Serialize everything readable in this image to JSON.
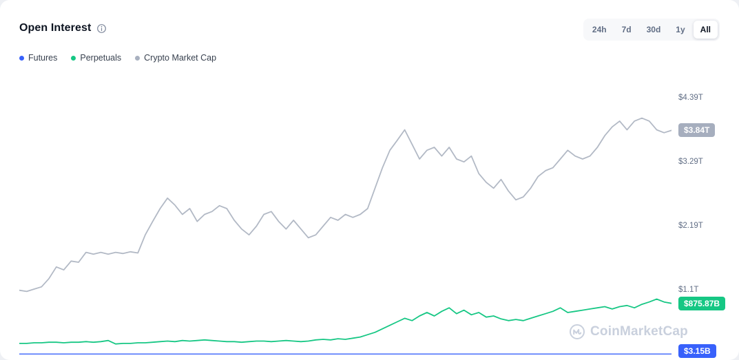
{
  "header": {
    "title": "Open Interest",
    "ranges": [
      "24h",
      "7d",
      "30d",
      "1y",
      "All"
    ],
    "active_range": "All"
  },
  "legend": [
    {
      "label": "Futures",
      "color": "#3861fb"
    },
    {
      "label": "Perpetuals",
      "color": "#16c784"
    },
    {
      "label": "Crypto Market Cap",
      "color": "#a9b1c0"
    }
  ],
  "watermark": "CoinMarketCap",
  "colors": {
    "futures_blue": "#3861fb",
    "perpetuals_green": "#16c784",
    "market_cap_gray": "#b2b9c5",
    "active_pill_text": "#0d1421",
    "muted_text": "#616e85"
  },
  "chart_data": {
    "type": "line",
    "title": "Open Interest",
    "x_axis": {
      "labels_visible": false,
      "note": "time, oldest to newest, evenly spaced samples"
    },
    "grid": false,
    "legend_position": "top-left",
    "ylim_T": [
      0,
      4.6
    ],
    "y_ticks": [
      {
        "label": "$4.39T",
        "value_T": 4.39
      },
      {
        "label": "$3.29T",
        "value_T": 3.29
      },
      {
        "label": "$2.19T",
        "value_T": 2.19
      },
      {
        "label": "$1.1T",
        "value_T": 1.1
      }
    ],
    "series": [
      {
        "name": "Crypto Market Cap",
        "color": "#b2b9c5",
        "badge_color": "#a6aebe",
        "stroke_width": 1.8,
        "last_value_label": "$3.84T",
        "values_T": [
          1.1,
          1.08,
          1.12,
          1.16,
          1.3,
          1.5,
          1.45,
          1.6,
          1.58,
          1.75,
          1.72,
          1.75,
          1.72,
          1.75,
          1.73,
          1.76,
          1.74,
          2.05,
          2.28,
          2.5,
          2.68,
          2.56,
          2.4,
          2.5,
          2.28,
          2.4,
          2.45,
          2.55,
          2.5,
          2.3,
          2.15,
          2.05,
          2.2,
          2.4,
          2.45,
          2.28,
          2.15,
          2.3,
          2.15,
          2.0,
          2.05,
          2.2,
          2.35,
          2.3,
          2.4,
          2.35,
          2.4,
          2.5,
          2.85,
          3.2,
          3.5,
          3.67,
          3.85,
          3.6,
          3.35,
          3.5,
          3.55,
          3.4,
          3.55,
          3.35,
          3.3,
          3.4,
          3.1,
          2.95,
          2.85,
          3.0,
          2.8,
          2.65,
          2.7,
          2.85,
          3.05,
          3.15,
          3.2,
          3.35,
          3.5,
          3.4,
          3.35,
          3.4,
          3.55,
          3.75,
          3.9,
          4.0,
          3.85,
          4.0,
          4.05,
          4.0,
          3.85,
          3.8,
          3.84
        ]
      },
      {
        "name": "Perpetuals",
        "color": "#16c784",
        "badge_color": "#16c784",
        "stroke_width": 1.8,
        "last_value_label": "$875.87B",
        "values_T": [
          0.19,
          0.19,
          0.2,
          0.2,
          0.21,
          0.21,
          0.2,
          0.21,
          0.21,
          0.22,
          0.21,
          0.22,
          0.24,
          0.18,
          0.19,
          0.19,
          0.2,
          0.2,
          0.21,
          0.22,
          0.23,
          0.22,
          0.24,
          0.23,
          0.24,
          0.25,
          0.24,
          0.23,
          0.22,
          0.22,
          0.21,
          0.22,
          0.23,
          0.23,
          0.22,
          0.23,
          0.24,
          0.23,
          0.22,
          0.23,
          0.25,
          0.26,
          0.25,
          0.27,
          0.26,
          0.28,
          0.3,
          0.34,
          0.38,
          0.44,
          0.5,
          0.56,
          0.62,
          0.58,
          0.66,
          0.72,
          0.66,
          0.74,
          0.8,
          0.7,
          0.76,
          0.68,
          0.72,
          0.64,
          0.66,
          0.61,
          0.58,
          0.6,
          0.58,
          0.62,
          0.66,
          0.7,
          0.74,
          0.8,
          0.72,
          0.74,
          0.76,
          0.78,
          0.8,
          0.82,
          0.78,
          0.82,
          0.84,
          0.8,
          0.86,
          0.9,
          0.95,
          0.9,
          0.876
        ]
      },
      {
        "name": "Futures",
        "color": "#3861fb",
        "badge_color": "#3861fb",
        "stroke_width": 2.2,
        "last_value_label": "$3.15B",
        "values_T": [
          0.00315,
          0.00315,
          0.00315,
          0.00315,
          0.00315
        ]
      }
    ]
  }
}
